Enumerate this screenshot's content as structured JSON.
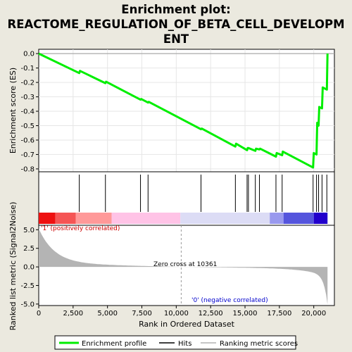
{
  "chart_data": {
    "type": "line",
    "title_line1": "Enrichment plot:",
    "title_line2": "REACTOME_REGULATION_OF_BETA_CELL_DEVELOPM",
    "title_line3": "ENT",
    "top_panel": {
      "ylabel": "Enrichment score (ES)",
      "ylim": [
        -0.82,
        0.03
      ],
      "yticks": [
        "0.0",
        "-0.1",
        "-0.2",
        "-0.3",
        "-0.4",
        "-0.5",
        "-0.6",
        "-0.7",
        "-0.8"
      ],
      "ytick_values": [
        0.0,
        -0.1,
        -0.2,
        -0.3,
        -0.4,
        -0.5,
        -0.6,
        -0.7,
        -0.8
      ],
      "color": "#00ee00",
      "series": {
        "name": "Enrichment profile",
        "x": [
          0,
          2950,
          3000,
          4850,
          4900,
          7400,
          7450,
          7950,
          8000,
          11800,
          11850,
          14300,
          14350,
          15150,
          15200,
          15250,
          15750,
          15800,
          16050,
          16100,
          17250,
          17300,
          17700,
          17750,
          19950,
          20000,
          20200,
          20250,
          20350,
          20400,
          20600,
          20650,
          20950,
          21000
        ],
        "y": [
          0.0,
          -0.135,
          -0.12,
          -0.205,
          -0.195,
          -0.32,
          -0.315,
          -0.34,
          -0.335,
          -0.525,
          -0.52,
          -0.645,
          -0.625,
          -0.67,
          -0.655,
          -0.655,
          -0.675,
          -0.66,
          -0.665,
          -0.66,
          -0.715,
          -0.69,
          -0.705,
          -0.68,
          -0.79,
          -0.69,
          -0.7,
          -0.48,
          -0.5,
          -0.37,
          -0.38,
          -0.235,
          -0.25,
          0.0
        ]
      }
    },
    "hits_panel": {
      "hits": [
        2950,
        4850,
        7400,
        7950,
        11800,
        14300,
        15150,
        15250,
        15750,
        16050,
        17250,
        17700,
        19950,
        20200,
        20350,
        20600,
        20950
      ],
      "gradient": [
        "#ee1111",
        "#ff9999",
        "#ffc3e6",
        "#dcdcf5",
        "#9999ee",
        "#5555dd",
        "#2200cc"
      ]
    },
    "bottom_panel": {
      "ylabel": "Ranked list metric (Signal2Noise)",
      "ylim": [
        -5.2,
        5.6
      ],
      "yticks": [
        "5.0",
        "2.5",
        "0.0",
        "-2.5",
        "-5.0"
      ],
      "ytick_values": [
        5.0,
        2.5,
        0.0,
        -2.5,
        -5.0
      ],
      "positive_label": "'1' (positively correlated)",
      "negative_label": "'0' (negative correlated)",
      "zero_cross_label": "Zero cross at 10361",
      "zero_cross": 10361
    },
    "xlabel": "Rank in Ordered Dataset",
    "xlim": [
      0,
      21500
    ],
    "xticks": [
      "0",
      "2,500",
      "5,000",
      "7,500",
      "10,000",
      "12,500",
      "15,000",
      "17,500",
      "20,000"
    ],
    "xtick_values": [
      0,
      2500,
      5000,
      7500,
      10000,
      12500,
      15000,
      17500,
      20000
    ],
    "legend": {
      "placement": "bottom",
      "items": [
        "Enrichment profile",
        "Hits",
        "Ranking metric scores"
      ]
    }
  }
}
